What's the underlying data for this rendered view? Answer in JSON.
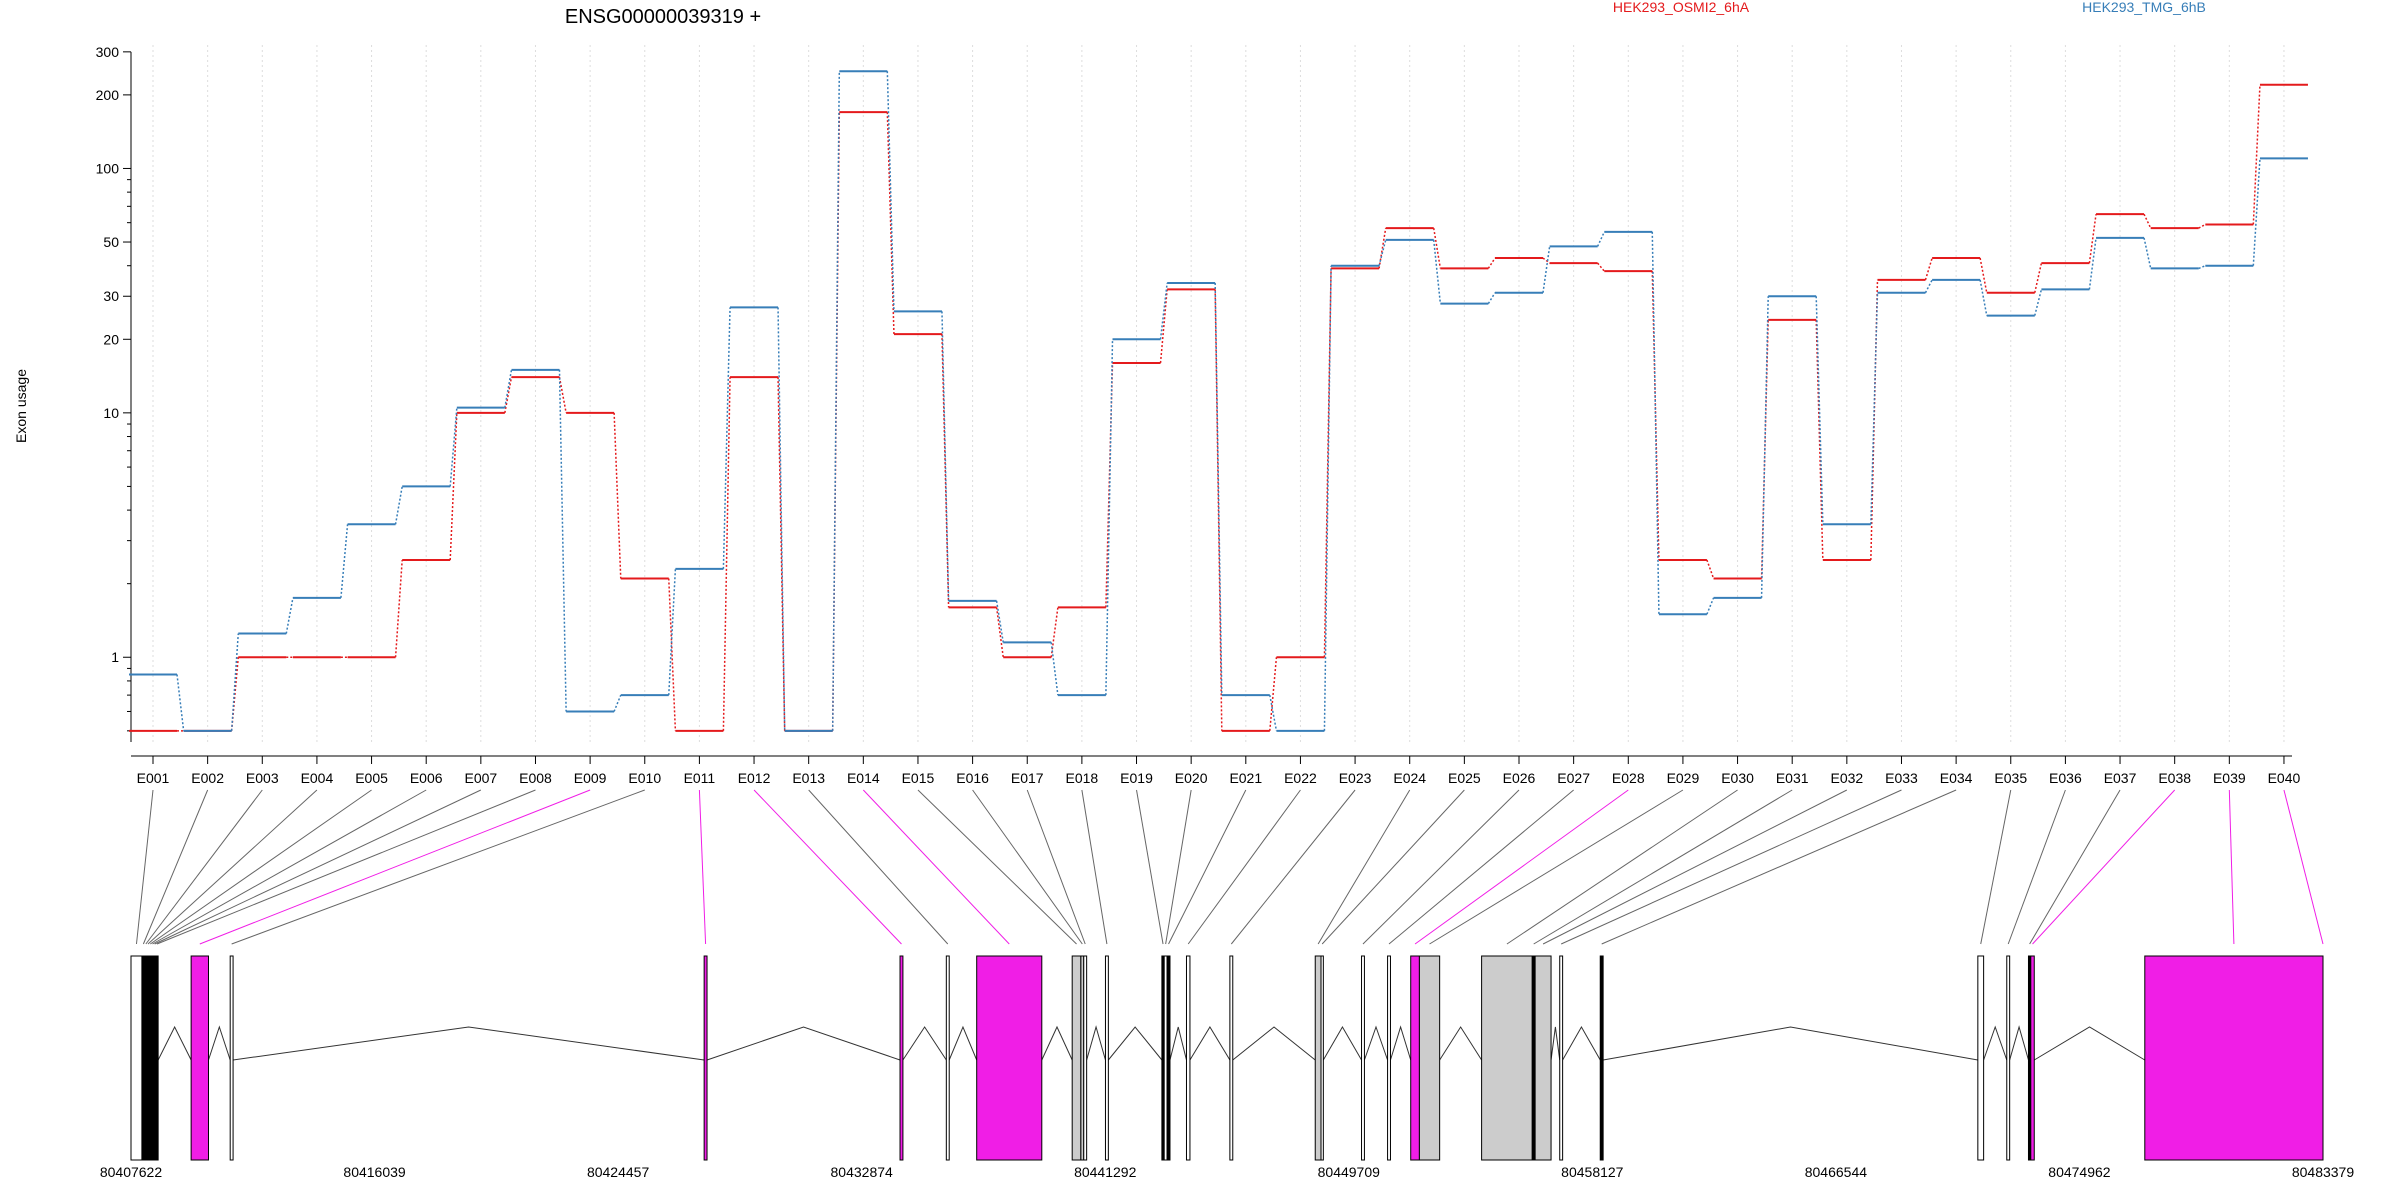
{
  "title": "ENSG00000039319 +",
  "legend": [
    {
      "name": "HEK293_OSMI2_6hA",
      "color": "#e41a1c"
    },
    {
      "name": "HEK293_TMG_6hB",
      "color": "#377eb8"
    }
  ],
  "chart_data": {
    "type": "line",
    "title": "ENSG00000039319 +",
    "ylabel": "Exon usage",
    "xlabel": "",
    "yscale": "log",
    "ylim": [
      0.45,
      320
    ],
    "yticks": [
      1,
      10,
      20,
      30,
      50,
      100,
      200,
      300
    ],
    "grid": "vertical dotted lines at each exon",
    "legend_position": "top",
    "categories": [
      "E001",
      "E002",
      "E003",
      "E004",
      "E005",
      "E006",
      "E007",
      "E008",
      "E009",
      "E010",
      "E011",
      "E012",
      "E013",
      "E014",
      "E015",
      "E016",
      "E017",
      "E018",
      "E019",
      "E020",
      "E021",
      "E022",
      "E023",
      "E024",
      "E025",
      "E026",
      "E027",
      "E028",
      "E029",
      "E030",
      "E031",
      "E032",
      "E033",
      "E034",
      "E035",
      "E036",
      "E037",
      "E038",
      "E039",
      "E040"
    ],
    "series": [
      {
        "name": "HEK293_OSMI2_6hA",
        "color": "#e41a1c",
        "values": [
          0.5,
          0.5,
          1.0,
          1.0,
          1.0,
          2.5,
          10.0,
          14.0,
          10.0,
          2.1,
          0.5,
          14.0,
          0.5,
          170,
          21,
          1.6,
          1.0,
          1.6,
          16,
          32,
          0.5,
          1.0,
          39,
          57,
          39,
          43,
          41,
          38,
          2.5,
          2.1,
          24,
          2.5,
          35,
          43,
          31,
          41,
          65,
          57,
          59,
          220
        ]
      },
      {
        "name": "HEK293_TMG_6hB",
        "color": "#377eb8",
        "values": [
          0.85,
          0.5,
          1.25,
          1.75,
          3.5,
          5.0,
          10.5,
          15.0,
          0.6,
          0.7,
          2.3,
          27,
          0.5,
          250,
          26,
          1.7,
          1.15,
          0.7,
          20,
          34,
          0.7,
          0.5,
          40,
          51,
          28,
          31,
          48,
          55,
          1.5,
          1.75,
          30,
          3.5,
          31,
          35,
          25,
          32,
          52,
          39,
          40,
          110
        ]
      }
    ]
  },
  "gene_model": {
    "axis_ticks": [
      "80407622",
      "80416039",
      "80424457",
      "80432874",
      "80441292",
      "80449709",
      "80458127",
      "80466544",
      "80474962",
      "80483379"
    ],
    "coord_min": 80407622,
    "coord_max": 80483379,
    "highlight_color": "#f01ee6",
    "gray_color": "#cccccc",
    "exons": [
      {
        "id": "E001",
        "start": 80407622,
        "end": 80408000,
        "color": "white"
      },
      {
        "id": "E002",
        "start": 80408000,
        "end": 80408100,
        "color": "black"
      },
      {
        "id": "E003",
        "start": 80408100,
        "end": 80408170,
        "color": "black"
      },
      {
        "id": "E004",
        "start": 80408170,
        "end": 80408250,
        "color": "black"
      },
      {
        "id": "E005",
        "start": 80408250,
        "end": 80408330,
        "color": "black"
      },
      {
        "id": "E006",
        "start": 80408330,
        "end": 80408400,
        "color": "black"
      },
      {
        "id": "E007",
        "start": 80408400,
        "end": 80408480,
        "color": "black"
      },
      {
        "id": "E008",
        "start": 80408480,
        "end": 80408560,
        "color": "black"
      },
      {
        "id": "E009",
        "start": 80409700,
        "end": 80410300,
        "color": "magenta"
      },
      {
        "id": "E010",
        "start": 80411050,
        "end": 80411150,
        "color": "white"
      },
      {
        "id": "E011",
        "start": 80427430,
        "end": 80427530,
        "color": "magenta"
      },
      {
        "id": "E012",
        "start": 80434200,
        "end": 80434300,
        "color": "magenta"
      },
      {
        "id": "E013",
        "start": 80435800,
        "end": 80435900,
        "color": "white"
      },
      {
        "id": "E014",
        "start": 80436850,
        "end": 80439100,
        "color": "magenta"
      },
      {
        "id": "E015",
        "start": 80440150,
        "end": 80440450,
        "color": "gray"
      },
      {
        "id": "E016",
        "start": 80440450,
        "end": 80440550,
        "color": "gray"
      },
      {
        "id": "E017",
        "start": 80440550,
        "end": 80440650,
        "color": "white"
      },
      {
        "id": "E018",
        "start": 80441300,
        "end": 80441400,
        "color": "white"
      },
      {
        "id": "E019",
        "start": 80443250,
        "end": 80443330,
        "color": "black"
      },
      {
        "id": "E020",
        "start": 80443330,
        "end": 80443430,
        "color": "white"
      },
      {
        "id": "E021",
        "start": 80443430,
        "end": 80443530,
        "color": "black"
      },
      {
        "id": "E022",
        "start": 80444100,
        "end": 80444220,
        "color": "white"
      },
      {
        "id": "E023",
        "start": 80445600,
        "end": 80445700,
        "color": "white"
      },
      {
        "id": "E024",
        "start": 80448550,
        "end": 80448750,
        "color": "gray"
      },
      {
        "id": "E025",
        "start": 80448750,
        "end": 80448830,
        "color": "white"
      },
      {
        "id": "E026",
        "start": 80450150,
        "end": 80450250,
        "color": "white"
      },
      {
        "id": "E027",
        "start": 80451050,
        "end": 80451150,
        "color": "white"
      },
      {
        "id": "E028",
        "start": 80451850,
        "end": 80452150,
        "color": "magenta"
      },
      {
        "id": "E029",
        "start": 80452150,
        "end": 80452850,
        "color": "gray"
      },
      {
        "id": "E030",
        "start": 80454300,
        "end": 80456050,
        "color": "gray"
      },
      {
        "id": "E031",
        "start": 80456050,
        "end": 80456150,
        "color": "black"
      },
      {
        "id": "E032",
        "start": 80456150,
        "end": 80456700,
        "color": "gray"
      },
      {
        "id": "E033",
        "start": 80457000,
        "end": 80457100,
        "color": "white"
      },
      {
        "id": "E034",
        "start": 80458400,
        "end": 80458500,
        "color": "black"
      },
      {
        "id": "E035",
        "start": 80471450,
        "end": 80471650,
        "color": "white"
      },
      {
        "id": "E036",
        "start": 80472450,
        "end": 80472550,
        "color": "white"
      },
      {
        "id": "E037",
        "start": 80473200,
        "end": 80473280,
        "color": "black"
      },
      {
        "id": "E038",
        "start": 80473280,
        "end": 80473400,
        "color": "magenta"
      },
      {
        "id": "E039",
        "start": 80477220,
        "end": 80483379,
        "color": "magenta"
      },
      {
        "id": "E040",
        "start": 80483379,
        "end": 80483379,
        "color": "magenta"
      }
    ]
  }
}
